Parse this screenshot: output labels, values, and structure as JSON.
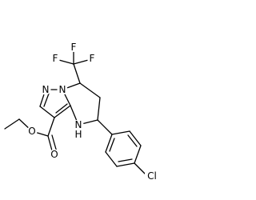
{
  "atoms": [
    {
      "label": "F"
    },
    {
      "label": "F"
    },
    {
      "label": "F"
    },
    {
      "label": "N"
    },
    {
      "label": "N"
    },
    {
      "label": "N"
    },
    {
      "label": "H"
    },
    {
      "label": "O"
    },
    {
      "label": "O"
    },
    {
      "label": "Cl"
    }
  ]
}
